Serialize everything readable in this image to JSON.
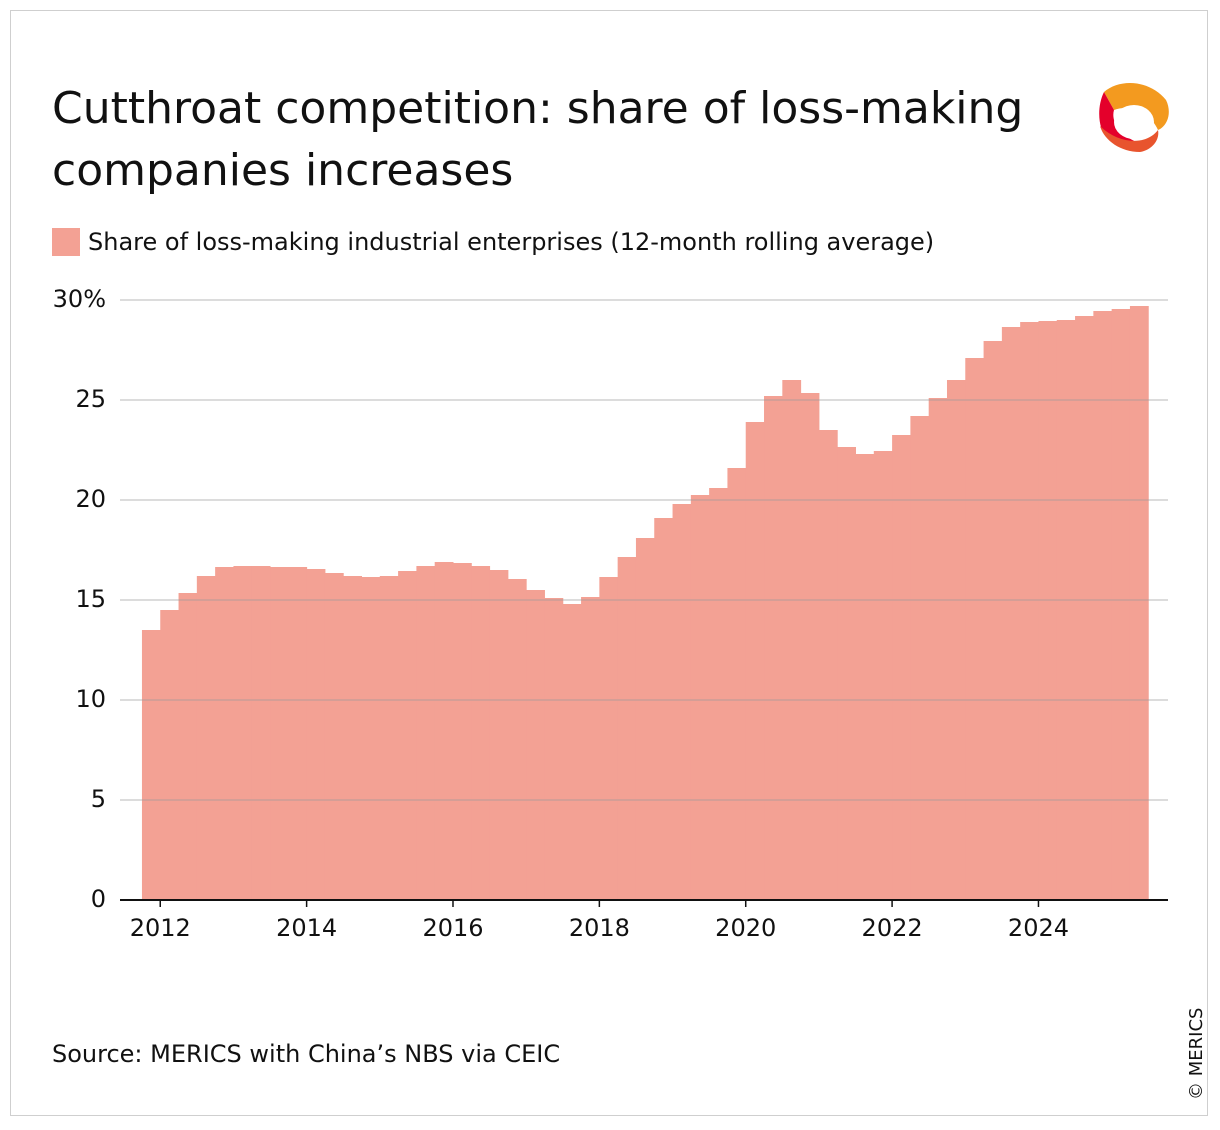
{
  "chart_data": {
    "type": "step_area",
    "title": "Cutthroat competition: share of loss-making companies increases",
    "source": "Source: MERICS with China’s NBS via CEIC",
    "copyright": "© MERICS",
    "series": [
      {
        "name": "Share of loss-making industrial enterprises (12-month rolling average)",
        "color": "#f3a194",
        "x": [
          2011.75,
          2012,
          2012.25,
          2012.5,
          2012.75,
          2013,
          2013.25,
          2013.5,
          2013.75,
          2014,
          2014.25,
          2014.5,
          2014.75,
          2015,
          2015.25,
          2015.5,
          2015.75,
          2016,
          2016.25,
          2016.5,
          2016.75,
          2017,
          2017.25,
          2017.5,
          2017.75,
          2018,
          2018.25,
          2018.5,
          2018.75,
          2019,
          2019.25,
          2019.5,
          2019.75,
          2020,
          2020.25,
          2020.5,
          2020.75,
          2021,
          2021.25,
          2021.5,
          2021.75,
          2022,
          2022.25,
          2022.5,
          2022.75,
          2023,
          2023.25,
          2023.5,
          2023.75,
          2024,
          2024.25,
          2024.5,
          2024.75,
          2025,
          2025.25
        ],
        "values": [
          13.5,
          14.5,
          15.35,
          16.2,
          16.65,
          16.7,
          16.7,
          16.65,
          16.65,
          16.55,
          16.35,
          16.2,
          16.15,
          16.2,
          16.45,
          16.7,
          16.9,
          16.85,
          16.7,
          16.5,
          16.05,
          15.5,
          15.1,
          14.8,
          15.15,
          16.15,
          17.15,
          18.1,
          19.1,
          19.8,
          20.25,
          20.6,
          21.6,
          23.9,
          25.2,
          26.0,
          25.35,
          23.5,
          22.65,
          22.3,
          22.45,
          23.25,
          24.2,
          25.1,
          26.0,
          27.1,
          27.95,
          28.65,
          28.9,
          28.95,
          29.0,
          29.2,
          29.45,
          29.55,
          29.7
        ]
      }
    ],
    "xlim": [
      2011.45,
      2025.77
    ],
    "xticks": [
      2012,
      2014,
      2016,
      2018,
      2020,
      2022,
      2024
    ],
    "ylim": [
      0,
      30
    ],
    "yticks": [
      0,
      5,
      10,
      15,
      20,
      25,
      {
        "value": 30,
        "label": "30%"
      }
    ],
    "grid": true
  }
}
